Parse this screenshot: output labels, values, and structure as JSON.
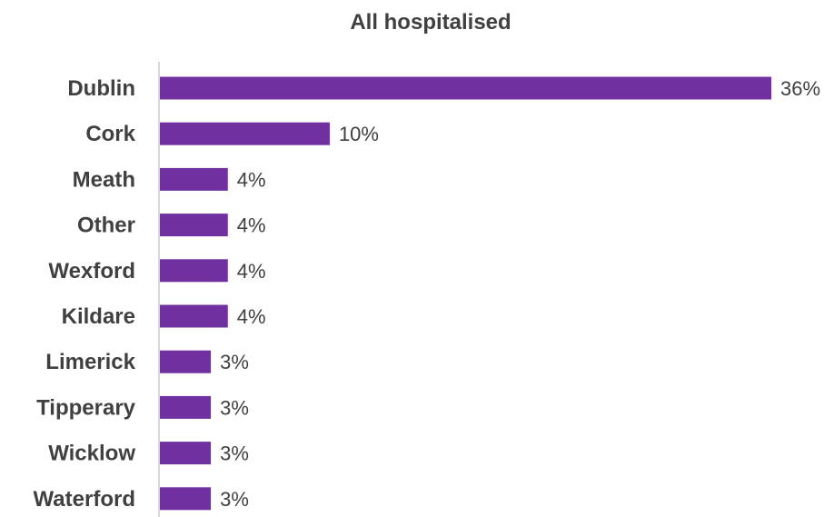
{
  "chart_data": {
    "type": "bar",
    "orientation": "horizontal",
    "title": "All hospitalised",
    "xlabel": "",
    "ylabel": "",
    "categories": [
      "Dublin",
      "Cork",
      "Meath",
      "Other",
      "Wexford",
      "Kildare",
      "Limerick",
      "Tipperary",
      "Wicklow",
      "Waterford"
    ],
    "values": [
      36,
      10,
      4,
      4,
      4,
      4,
      3,
      3,
      3,
      3
    ],
    "value_labels": [
      "36%",
      "10%",
      "4%",
      "4%",
      "4%",
      "4%",
      "3%",
      "3%",
      "3%",
      "3%"
    ],
    "xlim": [
      0,
      36
    ],
    "grid": false,
    "legend": "none",
    "bar_color": "#7030A0",
    "text_color": "#404040",
    "axis_color": "#D9D9D9"
  }
}
